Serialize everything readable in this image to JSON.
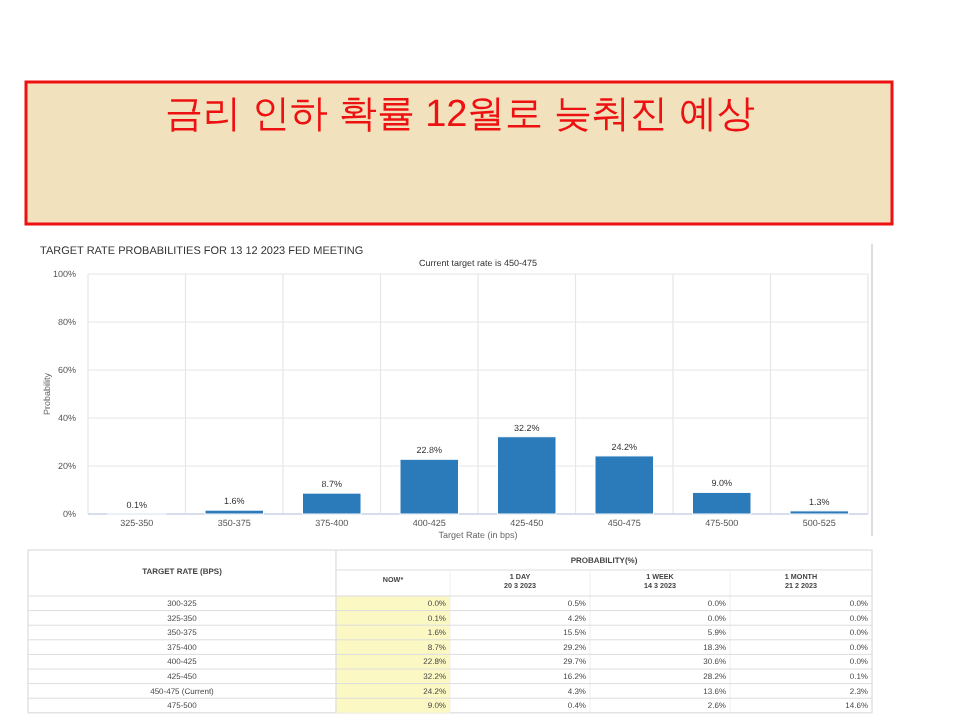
{
  "chart_data": [
    {
      "type": "bar",
      "title": "금리 인하 확률 12월로 늦춰진 예상",
      "subtitle": "TARGET RATE PROBABILITIES FOR 13 12 2023 FED MEETING",
      "annotations": [
        "Current target rate is 450-475"
      ],
      "xlabel": "Target Rate (in bps)",
      "ylabel": "Probability",
      "categories": [
        "325-350",
        "350-375",
        "375-400",
        "400-425",
        "425-450",
        "450-475",
        "475-500",
        "500-525"
      ],
      "values": [
        0.1,
        1.6,
        8.7,
        22.8,
        32.2,
        24.2,
        9.0,
        1.3
      ],
      "value_labels": [
        "0.1%",
        "1.6%",
        "8.7%",
        "22.8%",
        "32.2%",
        "24.2%",
        "9.0%",
        "1.3%"
      ],
      "color": "#2b7bba",
      "ylim": [
        0,
        100
      ],
      "yticks": [
        {
          "value": 0,
          "label": "0%"
        },
        {
          "value": 20,
          "label": "20%"
        },
        {
          "value": 40,
          "label": "40%"
        },
        {
          "value": 60,
          "label": "60%"
        },
        {
          "value": 80,
          "label": "80%"
        },
        {
          "value": 100,
          "label": "100%"
        }
      ],
      "grid": true
    },
    {
      "type": "other",
      "title": "PROBABILITY(%)",
      "xlabel": "TARGET RATE (BPS)",
      "categories": [
        "NOW*",
        "1 DAY 20 3 2023",
        "1 WEEK 14 3 2023",
        "1 MONTH 21 2 2023"
      ],
      "y_categories": [
        "300-325",
        "325-350",
        "350-375",
        "375-400",
        "400-425",
        "425-450",
        "450-475 (Current)",
        "475-500"
      ],
      "cell_labels": [
        [
          "0.0%",
          "0.5%",
          "0.0%",
          "0.0%"
        ],
        [
          "0.1%",
          "4.2%",
          "0.0%",
          "0.0%"
        ],
        [
          "1.6%",
          "15.5%",
          "5.9%",
          "0.0%"
        ],
        [
          "8.7%",
          "29.2%",
          "18.3%",
          "0.0%"
        ],
        [
          "22.8%",
          "29.7%",
          "30.6%",
          "0.0%"
        ],
        [
          "32.2%",
          "16.2%",
          "28.2%",
          "0.1%"
        ],
        [
          "24.2%",
          "4.3%",
          "13.6%",
          "2.3%"
        ],
        [
          "9.0%",
          "0.4%",
          "2.6%",
          "14.6%"
        ]
      ]
    }
  ]
}
